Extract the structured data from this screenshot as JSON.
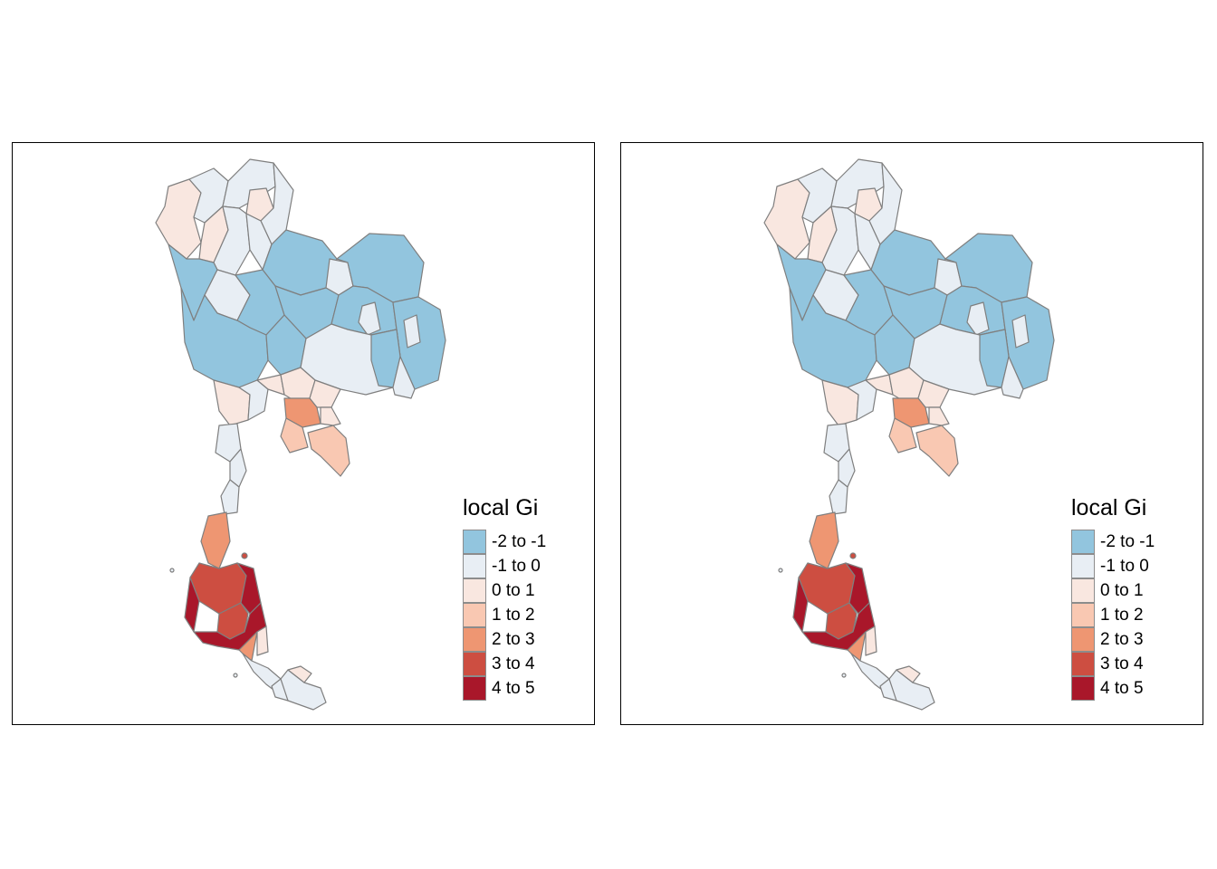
{
  "maps": [
    {
      "id": "left",
      "legend": {
        "title": "local Gi",
        "items": [
          {
            "label": "-2 to -1",
            "color": "#92c5de"
          },
          {
            "label": "-1 to 0",
            "color": "#e8eef4"
          },
          {
            "label": "0 to 1",
            "color": "#f9e7e0"
          },
          {
            "label": "1 to 2",
            "color": "#f9c8b2"
          },
          {
            "label": "2 to 3",
            "color": "#ee9672"
          },
          {
            "label": "3 to 4",
            "color": "#cd4e41"
          },
          {
            "label": "4 to 5",
            "color": "#a9172a"
          }
        ]
      }
    },
    {
      "id": "right",
      "legend": {
        "title": "local Gi",
        "items": [
          {
            "label": "-2 to -1",
            "color": "#92c5de"
          },
          {
            "label": "-1 to 0",
            "color": "#e8eef4"
          },
          {
            "label": "0 to 1",
            "color": "#f9e7e0"
          },
          {
            "label": "1 to 2",
            "color": "#f9c8b2"
          },
          {
            "label": "2 to 3",
            "color": "#ee9672"
          },
          {
            "label": "3 to 4",
            "color": "#cd4e41"
          },
          {
            "label": "4 to 5",
            "color": "#a9172a"
          }
        ]
      }
    }
  ]
}
